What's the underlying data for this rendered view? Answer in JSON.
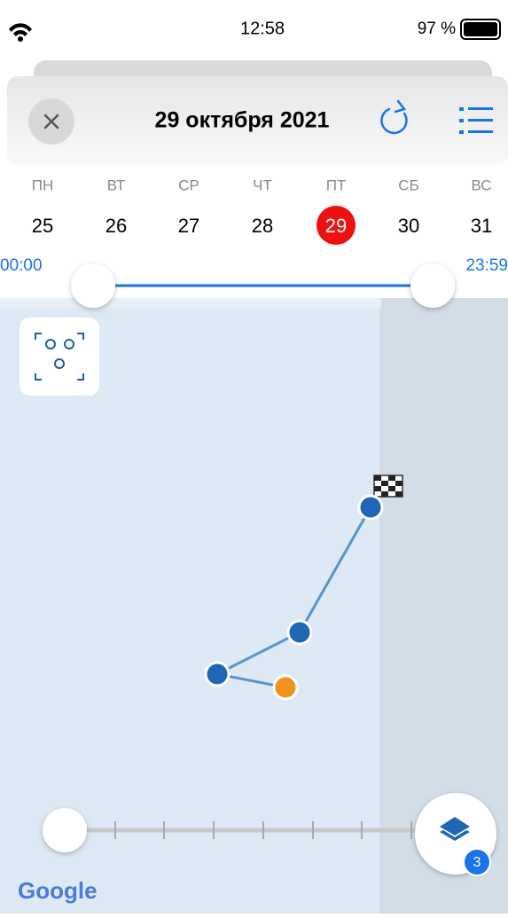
{
  "status_bar": {
    "time": "12:58",
    "battery": "97 %"
  },
  "header": {
    "title": "29 октября 2021"
  },
  "week": {
    "days": [
      "ПН",
      "ВТ",
      "СР",
      "ЧТ",
      "ПТ",
      "СБ",
      "ВС"
    ],
    "dates": [
      "25",
      "26",
      "27",
      "28",
      "29",
      "30",
      "31"
    ]
  },
  "time_range": {
    "start": "00:00",
    "end": "23:59"
  },
  "map": {
    "layers_badge": "3",
    "attribution": "Google"
  }
}
